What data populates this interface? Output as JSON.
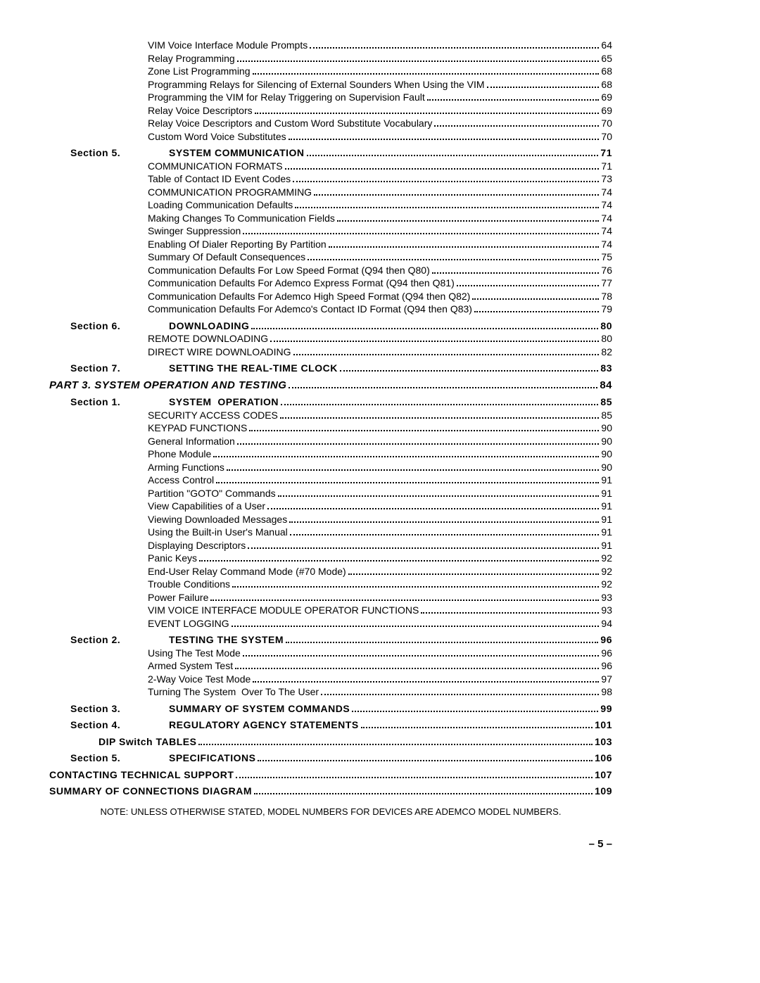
{
  "footer_page": "– 5 –",
  "note": "NOTE: UNLESS OTHERWISE STATED, MODEL NUMBERS FOR DEVICES ARE ADEMCO MODEL NUMBERS.",
  "entries": [
    {
      "label": "",
      "title": "VIM Voice Interface Module Prompts",
      "page": "64",
      "indent": "l2",
      "bold": false
    },
    {
      "label": "",
      "title": "Relay Programming",
      "page": "65",
      "indent": "l2",
      "bold": false
    },
    {
      "label": "",
      "title": "Zone List Programming",
      "page": "68",
      "indent": "l2",
      "bold": false
    },
    {
      "label": "",
      "title": "Programming Relays for Silencing of External Sounders When Using the VIM",
      "page": "68",
      "indent": "l2",
      "bold": false
    },
    {
      "label": "",
      "title": "Programming the VIM for Relay Triggering on Supervision Fault",
      "page": "69",
      "indent": "l2",
      "bold": false
    },
    {
      "label": "",
      "title": "Relay Voice Descriptors",
      "page": "69",
      "indent": "l2",
      "bold": false
    },
    {
      "label": "",
      "title": "Relay Voice Descriptors and Custom Word Substitute Vocabulary",
      "page": "70",
      "indent": "l2",
      "bold": false
    },
    {
      "label": "",
      "title": "Custom Word Voice Substitutes",
      "page": "70",
      "indent": "l2",
      "bold": false
    },
    {
      "label": "Section 5.",
      "title": "SYSTEM COMMUNICATION",
      "page": "71",
      "indent": "l1",
      "bold": true,
      "spaced": true,
      "gap": true
    },
    {
      "label": "",
      "title": "COMMUNICATION FORMATS",
      "page": "71",
      "indent": "l2",
      "bold": false
    },
    {
      "label": "",
      "title": "Table of Contact ID Event Codes",
      "page": "73",
      "indent": "l2",
      "bold": false
    },
    {
      "label": "",
      "title": "COMMUNICATION PROGRAMMING",
      "page": "74",
      "indent": "l2",
      "bold": false
    },
    {
      "label": "",
      "title": "Loading Communication Defaults",
      "page": "74",
      "indent": "l2",
      "bold": false
    },
    {
      "label": "",
      "title": "Making Changes To Communication Fields",
      "page": "74",
      "indent": "l2",
      "bold": false
    },
    {
      "label": "",
      "title": "Swinger Suppression",
      "page": "74",
      "indent": "l2",
      "bold": false
    },
    {
      "label": "",
      "title": "Enabling Of Dialer Reporting By Partition",
      "page": "74",
      "indent": "l2",
      "bold": false
    },
    {
      "label": "",
      "title": "Summary Of Default Consequences",
      "page": "75",
      "indent": "l2",
      "bold": false
    },
    {
      "label": "",
      "title": "Communication Defaults For Low Speed Format (Q94 then Q80)",
      "page": "76",
      "indent": "l2",
      "bold": false
    },
    {
      "label": "",
      "title": "Communication Defaults For Ademco Express Format (Q94 then Q81)",
      "page": "77",
      "indent": "l2",
      "bold": false
    },
    {
      "label": "",
      "title": "Communication Defaults For Ademco High Speed Format (Q94 then Q82)",
      "page": "78",
      "indent": "l2",
      "bold": false
    },
    {
      "label": "",
      "title": "Communication Defaults For Ademco's Contact ID Format (Q94 then Q83)",
      "page": "79",
      "indent": "l2",
      "bold": false
    },
    {
      "label": "Section 6.",
      "title": "DOWNLOADING",
      "page": "80",
      "indent": "l1",
      "bold": true,
      "spaced": true,
      "gap": true
    },
    {
      "label": "",
      "title": "REMOTE DOWNLOADING",
      "page": "80",
      "indent": "l2",
      "bold": false
    },
    {
      "label": "",
      "title": "DIRECT WIRE DOWNLOADING",
      "page": "82",
      "indent": "l2",
      "bold": false
    },
    {
      "label": "Section 7.",
      "title": "SETTING THE REAL-TIME CLOCK",
      "page": "83",
      "indent": "l1",
      "bold": true,
      "spaced": true,
      "gap": true
    },
    {
      "label": "",
      "title": "PART 3. SYSTEM OPERATION AND TESTING",
      "page": "84",
      "indent": "l0",
      "bold": true,
      "italic": true,
      "spaced": true,
      "gap": true
    },
    {
      "label": "Section 1.",
      "title": "SYSTEM  OPERATION",
      "page": "85",
      "indent": "l1",
      "bold": true,
      "spaced": true,
      "gap": true
    },
    {
      "label": "",
      "title": "SECURITY ACCESS CODES",
      "page": "85",
      "indent": "l2",
      "bold": false
    },
    {
      "label": "",
      "title": "KEYPAD FUNCTIONS",
      "page": "90",
      "indent": "l2",
      "bold": false
    },
    {
      "label": "",
      "title": "General Information",
      "page": "90",
      "indent": "l2",
      "bold": false
    },
    {
      "label": "",
      "title": "Phone Module",
      "page": "90",
      "indent": "l2",
      "bold": false
    },
    {
      "label": "",
      "title": "Arming Functions",
      "page": "90",
      "indent": "l2",
      "bold": false
    },
    {
      "label": "",
      "title": "Access Control",
      "page": "91",
      "indent": "l2",
      "bold": false
    },
    {
      "label": "",
      "title": "Partition \"GOTO\" Commands",
      "page": "91",
      "indent": "l2",
      "bold": false
    },
    {
      "label": "",
      "title": "View Capabilities of a User",
      "page": "91",
      "indent": "l2",
      "bold": false
    },
    {
      "label": "",
      "title": "Viewing Downloaded Messages",
      "page": "91",
      "indent": "l2",
      "bold": false
    },
    {
      "label": "",
      "title": "Using the Built-in User's Manual",
      "page": "91",
      "indent": "l2",
      "bold": false
    },
    {
      "label": "",
      "title": "Displaying Descriptors",
      "page": "91",
      "indent": "l2",
      "bold": false
    },
    {
      "label": "",
      "title": "Panic Keys",
      "page": "92",
      "indent": "l2",
      "bold": false
    },
    {
      "label": "",
      "title": "End-User Relay Command Mode (#70 Mode)",
      "page": "92",
      "indent": "l2",
      "bold": false
    },
    {
      "label": "",
      "title": "Trouble Conditions",
      "page": "92",
      "indent": "l2",
      "bold": false
    },
    {
      "label": "",
      "title": "Power Failure",
      "page": "93",
      "indent": "l2",
      "bold": false
    },
    {
      "label": "",
      "title": "VIM VOICE INTERFACE MODULE OPERATOR FUNCTIONS",
      "page": "93",
      "indent": "l2",
      "bold": false
    },
    {
      "label": "",
      "title": "EVENT LOGGING",
      "page": "94",
      "indent": "l2",
      "bold": false
    },
    {
      "label": "Section 2.",
      "title": "TESTING THE SYSTEM",
      "page": "96",
      "indent": "l1",
      "bold": true,
      "spaced": true,
      "gap": true
    },
    {
      "label": "",
      "title": "Using The Test Mode",
      "page": "96",
      "indent": "l2",
      "bold": false
    },
    {
      "label": "",
      "title": "Armed System Test",
      "page": "96",
      "indent": "l2",
      "bold": false
    },
    {
      "label": "",
      "title": "2-Way Voice Test Mode",
      "page": "97",
      "indent": "l2",
      "bold": false
    },
    {
      "label": "",
      "title": "Turning The System  Over To The User",
      "page": "98",
      "indent": "l2",
      "bold": false
    },
    {
      "label": "Section 3.",
      "title": "SUMMARY OF SYSTEM COMMANDS",
      "page": "99",
      "indent": "l1",
      "bold": true,
      "spaced": true,
      "gap": true
    },
    {
      "label": "Section 4.",
      "title": "REGULATORY AGENCY STATEMENTS",
      "page": "101",
      "indent": "l1",
      "bold": true,
      "spaced": true,
      "gap": true
    },
    {
      "label": "",
      "title": "DIP Switch TABLES",
      "page": "103",
      "indent": "l1b",
      "bold": true,
      "spaced": true,
      "gap": true
    },
    {
      "label": "Section 5.",
      "title": "SPECIFICATIONS",
      "page": "106",
      "indent": "l1",
      "bold": true,
      "spaced": true,
      "gap": true
    },
    {
      "label": "",
      "title": "CONTACTING TECHNICAL SUPPORT",
      "page": "107",
      "indent": "l0",
      "bold": true,
      "spaced": true,
      "gap": true
    },
    {
      "label": "",
      "title": "SUMMARY OF CONNECTIONS DIAGRAM",
      "page": "109",
      "indent": "l0",
      "bold": true,
      "spaced": true,
      "gap": true
    }
  ]
}
